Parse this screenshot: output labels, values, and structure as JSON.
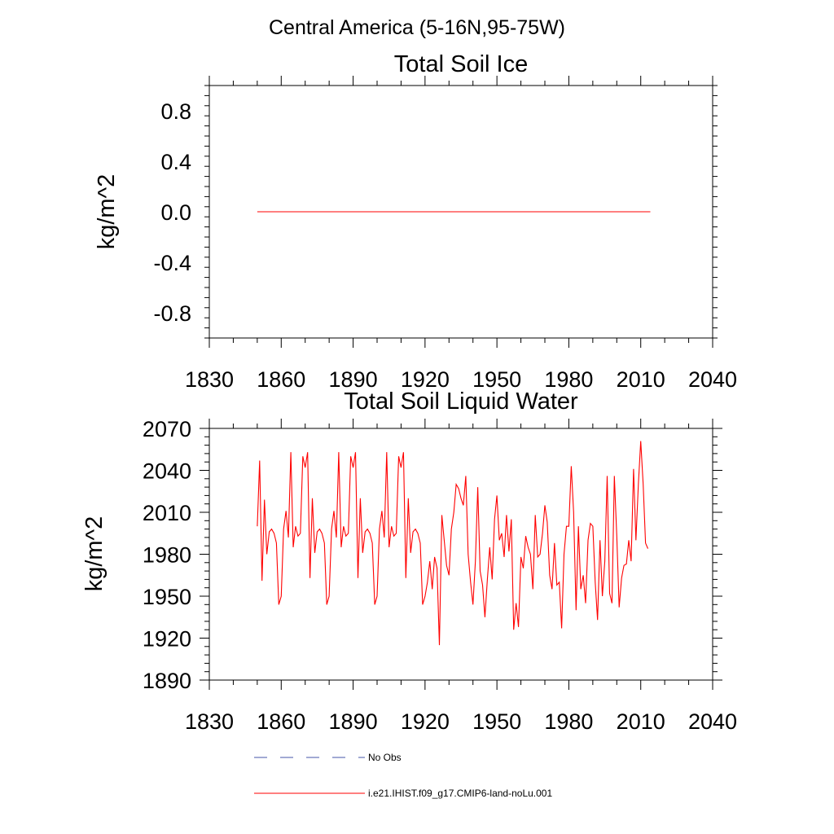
{
  "figure": {
    "title": "Central America (5-16N,95-75W)"
  },
  "chart_data": [
    {
      "type": "line",
      "title": "Total Soil Ice",
      "xlabel": "",
      "ylabel": "kg/m^2",
      "xlim": [
        1830,
        2040
      ],
      "ylim": [
        -1.0,
        1.0
      ],
      "xticks": [
        1830,
        1860,
        1890,
        1920,
        1950,
        1980,
        2010,
        2040
      ],
      "xtick_labels": [
        "1830",
        "1860",
        "1890",
        "1920",
        "1950",
        "1980",
        "2010",
        "2040"
      ],
      "yticks": [
        -0.8,
        -0.4,
        0.0,
        0.4,
        0.8
      ],
      "ytick_labels": [
        "-0.8",
        "-0.4",
        "0.0",
        "0.4",
        "0.8"
      ],
      "grid": false,
      "series": [
        {
          "name": "i.e21.IHIST.f09_g17.CMIP6-land-noLu.001",
          "color": "#ff0000",
          "x": [
            1850,
            2014
          ],
          "y": [
            0.0,
            0.0
          ]
        }
      ]
    },
    {
      "type": "line",
      "title": "Total Soil Liquid Water",
      "xlabel": "",
      "ylabel": "kg/m^2",
      "xlim": [
        1830,
        2040
      ],
      "ylim": [
        1890,
        2070
      ],
      "xticks": [
        1830,
        1860,
        1890,
        1920,
        1950,
        1980,
        2010,
        2040
      ],
      "xtick_labels": [
        "1830",
        "1860",
        "1890",
        "1920",
        "1950",
        "1980",
        "2010",
        "2040"
      ],
      "yticks": [
        1890,
        1920,
        1950,
        1980,
        2010,
        2040,
        2070
      ],
      "ytick_labels": [
        "1890",
        "1920",
        "1950",
        "1980",
        "2010",
        "2040",
        "2070"
      ],
      "grid": false,
      "series": [
        {
          "name": "i.e21.IHIST.f09_g17.CMIP6-land-noLu.001",
          "color": "#ff0000",
          "x_start": 1850,
          "x_step": 1,
          "y": [
            2000,
            2047,
            1961,
            2019,
            1980,
            1996,
            1998,
            1995,
            1988,
            1944,
            1950,
            1998,
            2011,
            1992,
            2053,
            1985,
            2000,
            1993,
            1995,
            2050,
            2042,
            2053,
            1963,
            2020,
            1981,
            1996,
            1998,
            1995,
            1988,
            1944,
            1950,
            1998,
            2011,
            1992,
            2053,
            1985,
            2000,
            1993,
            1995,
            2050,
            2042,
            2053,
            1963,
            2020,
            1981,
            1996,
            1998,
            1995,
            1988,
            1944,
            1950,
            1998,
            2011,
            1992,
            2053,
            1985,
            2000,
            1993,
            1995,
            2050,
            2042,
            2053,
            1963,
            2020,
            1981,
            1996,
            1998,
            1995,
            1988,
            1944,
            1950,
            1960,
            1975,
            1955,
            1978,
            1970,
            1915,
            2008,
            1990,
            1972,
            1965,
            1998,
            2010,
            2030,
            2027,
            2020,
            2015,
            2036,
            1980,
            1960,
            1944,
            1975,
            2028,
            1968,
            1958,
            1935,
            1962,
            1985,
            1962,
            2005,
            2022,
            1990,
            1995,
            1978,
            2008,
            1982,
            2005,
            1926,
            1945,
            1928,
            1978,
            1970,
            1993,
            1985,
            1980,
            1955,
            2008,
            1978,
            1980,
            1995,
            2015,
            2003,
            1965,
            1955,
            1988,
            1958,
            1960,
            1927,
            1980,
            2000,
            2000,
            2043,
            2010,
            1940,
            2000,
            1955,
            1965,
            1945,
            1990,
            2002,
            2000,
            1960,
            1933,
            1990,
            1950,
            1975,
            2036,
            1952,
            1945,
            2036,
            1993,
            1942,
            1963,
            1972,
            1973,
            1990,
            1975,
            2041,
            1990,
            2030,
            2061,
            2030,
            1988,
            1984
          ]
        }
      ]
    }
  ],
  "legend": {
    "placement": "bottom",
    "entries": [
      {
        "label": "No Obs",
        "color": "#4455aa",
        "style": "dashed"
      },
      {
        "label": "i.e21.IHIST.f09_g17.CMIP6-land-noLu.001",
        "color": "#ff0000",
        "style": "solid"
      }
    ]
  }
}
